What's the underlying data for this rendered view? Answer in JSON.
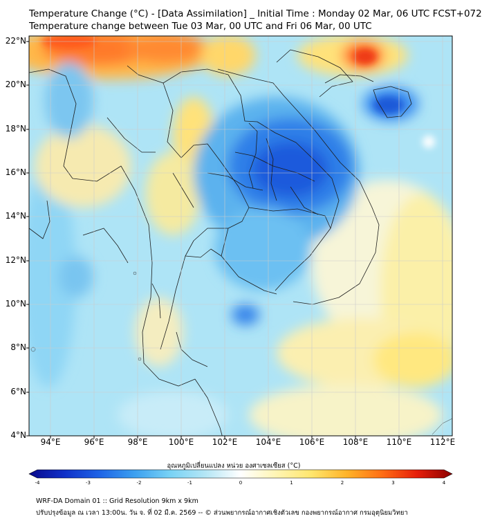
{
  "title": {
    "line1": "Temperature Change (°C) - [Data Assimilation] _ Initial Time : Monday 02 Mar, 06 UTC FCST+072",
    "line2": "Temperature change between Tue 03 Mar, 00 UTC and Fri 06 Mar, 00 UTC"
  },
  "map": {
    "lat_labels": [
      "22°N",
      "20°N",
      "18°N",
      "16°N",
      "14°N",
      "12°N",
      "10°N",
      "8°N",
      "6°N",
      "4°N"
    ],
    "lon_labels": [
      "94°E",
      "96°E",
      "98°E",
      "100°E",
      "102°E",
      "104°E",
      "106°E",
      "108°E",
      "110°E",
      "112°E"
    ]
  },
  "colorbar": {
    "label": "อุณหภูมิเปลี่ยนแปลง หน่วย องศาเซลเซียส (°C)",
    "ticks": [
      "-4",
      "-3",
      "-2",
      "-1",
      "0",
      "1",
      "2",
      "3",
      "4"
    ],
    "colors": [
      "#0a0a8c",
      "#1030c8",
      "#1e64e6",
      "#3ca0f0",
      "#78d2f5",
      "#b4e6f5",
      "#ffffff",
      "#fff5b4",
      "#ffe66e",
      "#ffb428",
      "#ff6e14",
      "#e61e0a",
      "#8c0000"
    ]
  },
  "footer": {
    "line1": "WRF-DA Domain 01 :: Grid Resolution 9km x 9km",
    "line2": "ปรับปรุงข้อมูล ณ เวลา 13:00น. วัน จ. ที่ 02 มี.ค. 2569 -- © ส่วนพยากรณ์อากาศเชิงตัวเลข กองพยากรณ์อากาศ กรมอุตุนิยมวิทยา"
  }
}
